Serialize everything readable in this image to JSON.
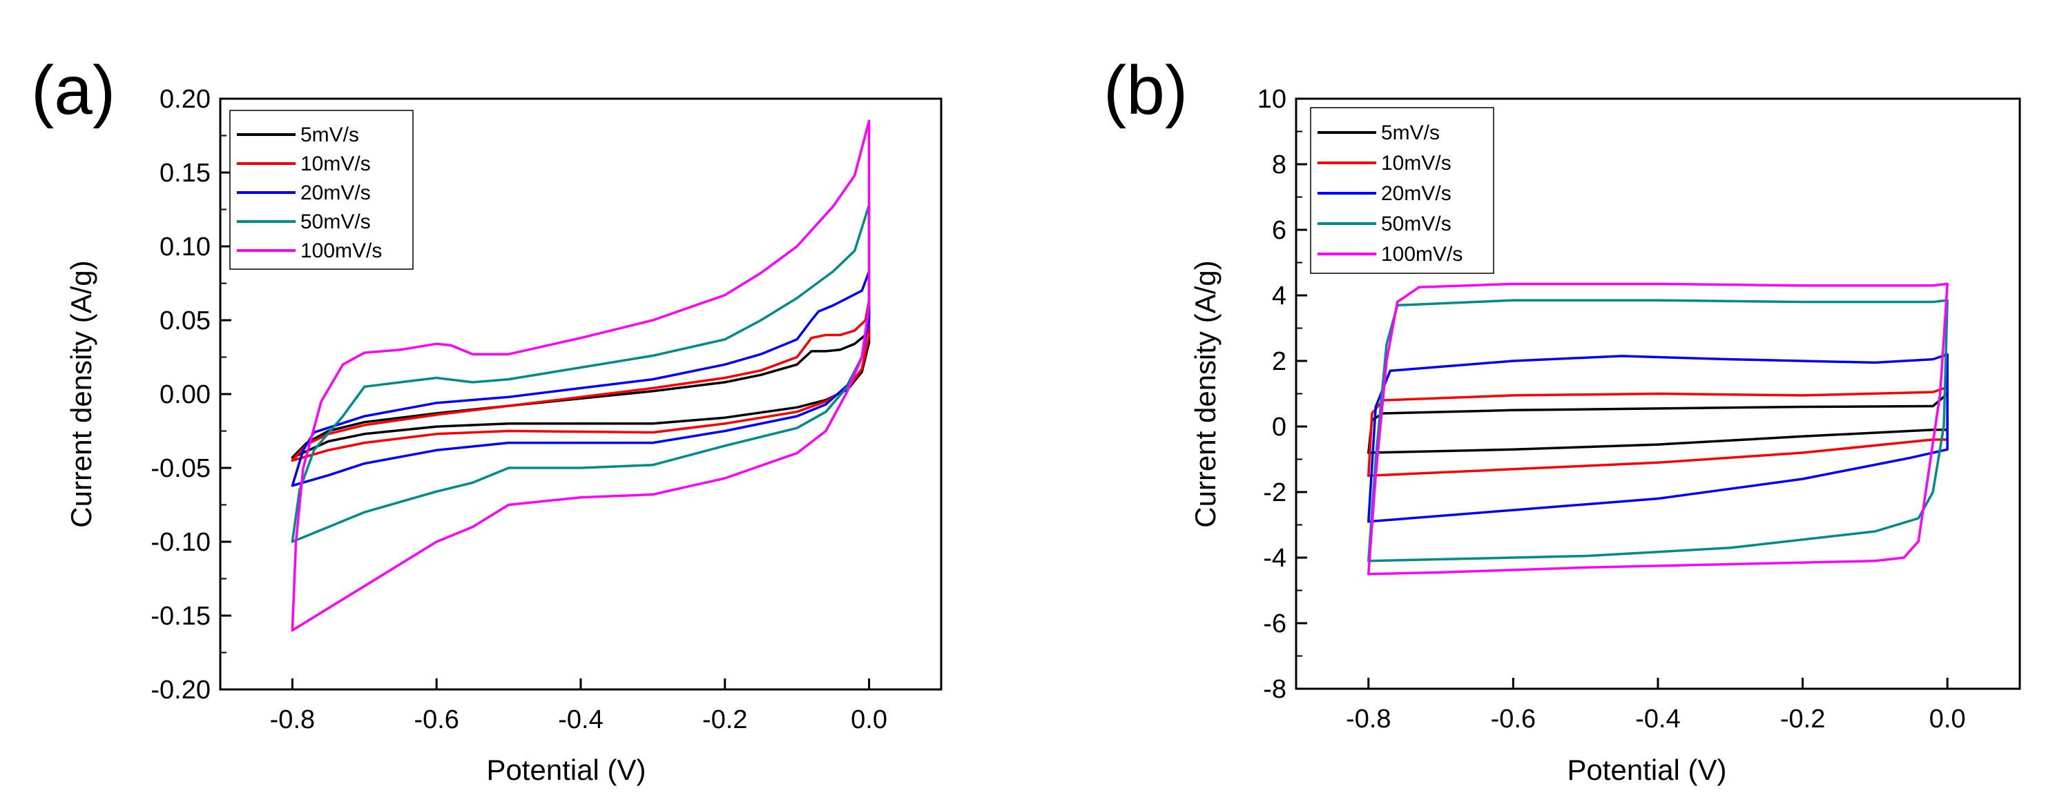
{
  "chart_data": [
    {
      "panel": "(a)",
      "type": "line",
      "xlabel": "Potential  (V)",
      "ylabel": "Current density (A/g)",
      "xlim": [
        -0.9,
        0.1
      ],
      "ylim": [
        -0.2,
        0.2
      ],
      "xticks": [
        -0.8,
        -0.6,
        -0.4,
        -0.2,
        0.0
      ],
      "xtick_labels": [
        "-0.8",
        "-0.6",
        "-0.4",
        "-0.2",
        "0.0"
      ],
      "yticks": [
        -0.2,
        -0.15,
        -0.1,
        -0.05,
        0.0,
        0.05,
        0.1,
        0.15,
        0.2
      ],
      "ytick_labels": [
        "-0.20",
        "-0.15",
        "-0.10",
        "-0.05",
        "0.00",
        "0.05",
        "0.10",
        "0.15",
        "0.20"
      ],
      "legend_position": "top-left",
      "series": [
        {
          "name": "5mV/s",
          "color": "#000000",
          "points": [
            [
              -0.8,
              -0.043
            ],
            [
              -0.78,
              -0.033
            ],
            [
              -0.75,
              -0.025
            ],
            [
              -0.7,
              -0.019
            ],
            [
              -0.6,
              -0.013
            ],
            [
              -0.5,
              -0.008
            ],
            [
              -0.4,
              -0.003
            ],
            [
              -0.3,
              0.002
            ],
            [
              -0.2,
              0.008
            ],
            [
              -0.15,
              0.013
            ],
            [
              -0.1,
              0.02
            ],
            [
              -0.08,
              0.029
            ],
            [
              -0.06,
              0.029
            ],
            [
              -0.04,
              0.03
            ],
            [
              -0.02,
              0.034
            ],
            [
              -0.005,
              0.04
            ],
            [
              0.0,
              0.047
            ],
            [
              0.0,
              0.035
            ],
            [
              -0.01,
              0.015
            ],
            [
              -0.03,
              0.003
            ],
            [
              -0.06,
              -0.004
            ],
            [
              -0.1,
              -0.009
            ],
            [
              -0.2,
              -0.016
            ],
            [
              -0.3,
              -0.02
            ],
            [
              -0.5,
              -0.02
            ],
            [
              -0.6,
              -0.022
            ],
            [
              -0.7,
              -0.027
            ],
            [
              -0.75,
              -0.032
            ],
            [
              -0.8,
              -0.043
            ]
          ]
        },
        {
          "name": "10mV/s",
          "color": "#ff0000",
          "points": [
            [
              -0.8,
              -0.045
            ],
            [
              -0.78,
              -0.034
            ],
            [
              -0.75,
              -0.027
            ],
            [
              -0.7,
              -0.021
            ],
            [
              -0.6,
              -0.014
            ],
            [
              -0.5,
              -0.008
            ],
            [
              -0.4,
              -0.002
            ],
            [
              -0.3,
              0.004
            ],
            [
              -0.2,
              0.011
            ],
            [
              -0.15,
              0.016
            ],
            [
              -0.1,
              0.025
            ],
            [
              -0.08,
              0.038
            ],
            [
              -0.06,
              0.04
            ],
            [
              -0.04,
              0.04
            ],
            [
              -0.02,
              0.043
            ],
            [
              -0.005,
              0.05
            ],
            [
              0.0,
              0.063
            ],
            [
              0.0,
              0.04
            ],
            [
              -0.01,
              0.017
            ],
            [
              -0.03,
              0.004
            ],
            [
              -0.06,
              -0.005
            ],
            [
              -0.1,
              -0.012
            ],
            [
              -0.2,
              -0.02
            ],
            [
              -0.3,
              -0.026
            ],
            [
              -0.5,
              -0.025
            ],
            [
              -0.6,
              -0.027
            ],
            [
              -0.7,
              -0.033
            ],
            [
              -0.75,
              -0.038
            ],
            [
              -0.8,
              -0.045
            ]
          ]
        },
        {
          "name": "20mV/s",
          "color": "#0000ff",
          "points": [
            [
              -0.8,
              -0.062
            ],
            [
              -0.785,
              -0.038
            ],
            [
              -0.77,
              -0.026
            ],
            [
              -0.7,
              -0.015
            ],
            [
              -0.6,
              -0.006
            ],
            [
              -0.5,
              -0.002
            ],
            [
              -0.4,
              0.004
            ],
            [
              -0.3,
              0.01
            ],
            [
              -0.2,
              0.02
            ],
            [
              -0.15,
              0.027
            ],
            [
              -0.1,
              0.037
            ],
            [
              -0.08,
              0.05
            ],
            [
              -0.07,
              0.056
            ],
            [
              -0.05,
              0.06
            ],
            [
              -0.03,
              0.065
            ],
            [
              -0.01,
              0.07
            ],
            [
              0.0,
              0.083
            ],
            [
              0.0,
              0.05
            ],
            [
              -0.01,
              0.025
            ],
            [
              -0.03,
              0.006
            ],
            [
              -0.06,
              -0.007
            ],
            [
              -0.1,
              -0.015
            ],
            [
              -0.2,
              -0.025
            ],
            [
              -0.3,
              -0.033
            ],
            [
              -0.5,
              -0.033
            ],
            [
              -0.6,
              -0.038
            ],
            [
              -0.7,
              -0.047
            ],
            [
              -0.75,
              -0.055
            ],
            [
              -0.8,
              -0.062
            ]
          ]
        },
        {
          "name": "50mV/s",
          "color": "#008b8b",
          "points": [
            [
              -0.8,
              -0.1
            ],
            [
              -0.79,
              -0.065
            ],
            [
              -0.77,
              -0.038
            ],
            [
              -0.73,
              -0.015
            ],
            [
              -0.7,
              0.005
            ],
            [
              -0.65,
              0.008
            ],
            [
              -0.6,
              0.011
            ],
            [
              -0.55,
              0.008
            ],
            [
              -0.5,
              0.01
            ],
            [
              -0.4,
              0.018
            ],
            [
              -0.3,
              0.026
            ],
            [
              -0.2,
              0.037
            ],
            [
              -0.15,
              0.05
            ],
            [
              -0.1,
              0.065
            ],
            [
              -0.05,
              0.083
            ],
            [
              -0.02,
              0.097
            ],
            [
              0.0,
              0.128
            ],
            [
              0.0,
              0.06
            ],
            [
              -0.01,
              0.025
            ],
            [
              -0.03,
              0.005
            ],
            [
              -0.06,
              -0.012
            ],
            [
              -0.1,
              -0.023
            ],
            [
              -0.2,
              -0.035
            ],
            [
              -0.3,
              -0.048
            ],
            [
              -0.4,
              -0.05
            ],
            [
              -0.5,
              -0.05
            ],
            [
              -0.55,
              -0.06
            ],
            [
              -0.6,
              -0.066
            ],
            [
              -0.7,
              -0.08
            ],
            [
              -0.75,
              -0.09
            ],
            [
              -0.8,
              -0.1
            ]
          ]
        },
        {
          "name": "100mV/s",
          "color": "#ff00ff",
          "points": [
            [
              -0.8,
              -0.16
            ],
            [
              -0.795,
              -0.1
            ],
            [
              -0.785,
              -0.05
            ],
            [
              -0.76,
              -0.005
            ],
            [
              -0.73,
              0.02
            ],
            [
              -0.7,
              0.028
            ],
            [
              -0.65,
              0.03
            ],
            [
              -0.6,
              0.034
            ],
            [
              -0.58,
              0.033
            ],
            [
              -0.55,
              0.027
            ],
            [
              -0.5,
              0.027
            ],
            [
              -0.4,
              0.038
            ],
            [
              -0.3,
              0.05
            ],
            [
              -0.2,
              0.067
            ],
            [
              -0.15,
              0.082
            ],
            [
              -0.1,
              0.1
            ],
            [
              -0.05,
              0.127
            ],
            [
              -0.02,
              0.148
            ],
            [
              0.0,
              0.185
            ],
            [
              0.0,
              0.06
            ],
            [
              -0.01,
              0.025
            ],
            [
              -0.03,
              0.002
            ],
            [
              -0.06,
              -0.025
            ],
            [
              -0.1,
              -0.04
            ],
            [
              -0.2,
              -0.057
            ],
            [
              -0.3,
              -0.068
            ],
            [
              -0.4,
              -0.07
            ],
            [
              -0.5,
              -0.075
            ],
            [
              -0.55,
              -0.09
            ],
            [
              -0.6,
              -0.1
            ],
            [
              -0.65,
              -0.115
            ],
            [
              -0.7,
              -0.13
            ],
            [
              -0.75,
              -0.145
            ],
            [
              -0.8,
              -0.16
            ]
          ]
        }
      ]
    },
    {
      "panel": "(b)",
      "type": "line",
      "xlabel": "Potential (V)",
      "ylabel": "Current density (A/g)",
      "xlim": [
        -0.9,
        0.1
      ],
      "ylim": [
        -8,
        10
      ],
      "xticks": [
        -0.8,
        -0.6,
        -0.4,
        -0.2,
        0.0
      ],
      "xtick_labels": [
        "-0.8",
        "-0.6",
        "-0.4",
        "-0.2",
        "0.0"
      ],
      "yticks": [
        -8,
        -6,
        -4,
        -2,
        0,
        2,
        4,
        6,
        8,
        10
      ],
      "ytick_labels": [
        "-8",
        "-6",
        "-4",
        "-2",
        "0",
        "2",
        "4",
        "6",
        "8",
        "10"
      ],
      "legend_position": "top-left",
      "series": [
        {
          "name": "5mV/s",
          "color": "#000000",
          "points": [
            [
              -0.8,
              -0.8
            ],
            [
              -0.795,
              0.2
            ],
            [
              -0.78,
              0.4
            ],
            [
              -0.6,
              0.5
            ],
            [
              -0.4,
              0.55
            ],
            [
              -0.2,
              0.6
            ],
            [
              -0.02,
              0.62
            ],
            [
              0.0,
              1.0
            ],
            [
              0.0,
              -0.1
            ],
            [
              -0.02,
              -0.1
            ],
            [
              -0.2,
              -0.3
            ],
            [
              -0.4,
              -0.55
            ],
            [
              -0.6,
              -0.7
            ],
            [
              -0.8,
              -0.8
            ]
          ]
        },
        {
          "name": "10mV/s",
          "color": "#ff0000",
          "points": [
            [
              -0.8,
              -1.5
            ],
            [
              -0.795,
              0.4
            ],
            [
              -0.78,
              0.8
            ],
            [
              -0.6,
              0.95
            ],
            [
              -0.4,
              1.0
            ],
            [
              -0.2,
              0.95
            ],
            [
              -0.02,
              1.05
            ],
            [
              0.0,
              1.2
            ],
            [
              0.0,
              -0.4
            ],
            [
              -0.02,
              -0.4
            ],
            [
              -0.2,
              -0.8
            ],
            [
              -0.4,
              -1.1
            ],
            [
              -0.6,
              -1.3
            ],
            [
              -0.8,
              -1.5
            ]
          ]
        },
        {
          "name": "20mV/s",
          "color": "#0000ff",
          "points": [
            [
              -0.8,
              -2.9
            ],
            [
              -0.79,
              0.6
            ],
            [
              -0.77,
              1.7
            ],
            [
              -0.6,
              2.0
            ],
            [
              -0.45,
              2.15
            ],
            [
              -0.3,
              2.05
            ],
            [
              -0.1,
              1.95
            ],
            [
              -0.02,
              2.05
            ],
            [
              0.0,
              2.2
            ],
            [
              0.0,
              -0.7
            ],
            [
              -0.02,
              -0.8
            ],
            [
              -0.05,
              -0.95
            ],
            [
              -0.2,
              -1.6
            ],
            [
              -0.4,
              -2.2
            ],
            [
              -0.6,
              -2.55
            ],
            [
              -0.8,
              -2.9
            ]
          ]
        },
        {
          "name": "50mV/s",
          "color": "#008b8b",
          "points": [
            [
              -0.8,
              -4.1
            ],
            [
              -0.79,
              -1.0
            ],
            [
              -0.775,
              2.5
            ],
            [
              -0.76,
              3.7
            ],
            [
              -0.6,
              3.85
            ],
            [
              -0.4,
              3.85
            ],
            [
              -0.2,
              3.8
            ],
            [
              -0.02,
              3.8
            ],
            [
              0.0,
              3.85
            ],
            [
              -0.005,
              0.0
            ],
            [
              -0.02,
              -2.0
            ],
            [
              -0.04,
              -2.8
            ],
            [
              -0.1,
              -3.2
            ],
            [
              -0.3,
              -3.7
            ],
            [
              -0.5,
              -3.95
            ],
            [
              -0.7,
              -4.05
            ],
            [
              -0.8,
              -4.1
            ]
          ]
        },
        {
          "name": "100mV/s",
          "color": "#ff00ff",
          "points": [
            [
              -0.8,
              -4.5
            ],
            [
              -0.79,
              -1.5
            ],
            [
              -0.775,
              2.0
            ],
            [
              -0.76,
              3.8
            ],
            [
              -0.73,
              4.25
            ],
            [
              -0.6,
              4.35
            ],
            [
              -0.4,
              4.35
            ],
            [
              -0.2,
              4.3
            ],
            [
              -0.02,
              4.3
            ],
            [
              0.0,
              4.35
            ],
            [
              -0.01,
              1.0
            ],
            [
              -0.03,
              -2.0
            ],
            [
              -0.04,
              -3.5
            ],
            [
              -0.06,
              -4.0
            ],
            [
              -0.1,
              -4.1
            ],
            [
              -0.3,
              -4.2
            ],
            [
              -0.5,
              -4.3
            ],
            [
              -0.7,
              -4.45
            ],
            [
              -0.8,
              -4.5
            ]
          ]
        }
      ]
    }
  ]
}
